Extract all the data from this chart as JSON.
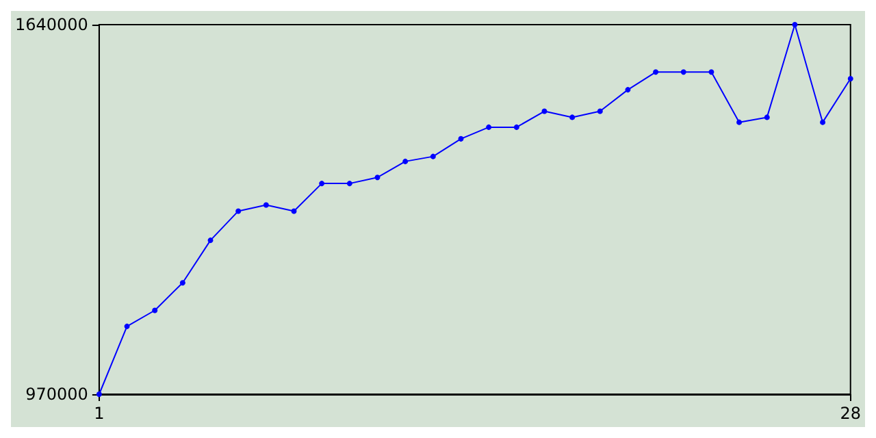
{
  "chart_data": {
    "type": "line",
    "x": [
      1,
      2,
      3,
      4,
      5,
      6,
      7,
      8,
      9,
      10,
      11,
      12,
      13,
      14,
      15,
      16,
      17,
      18,
      19,
      20,
      21,
      22,
      23,
      24,
      25,
      26,
      27,
      28
    ],
    "series": [
      {
        "color": "#0000ff",
        "values": [
          970000,
          1093000,
          1122000,
          1172000,
          1249000,
          1302000,
          1313000,
          1302000,
          1352000,
          1352000,
          1363000,
          1392000,
          1401000,
          1433000,
          1454000,
          1454000,
          1483000,
          1472000,
          1483000,
          1522000,
          1554000,
          1554000,
          1554000,
          1463000,
          1472000,
          1640000,
          1463000,
          1542000
        ]
      }
    ],
    "xlim": [
      1,
      28
    ],
    "xticks": [
      1,
      28
    ],
    "ylim": [
      970000,
      1640000
    ],
    "yticks": [
      970000,
      1640000
    ],
    "grid": false,
    "marker": "circle",
    "line_style": "solid"
  }
}
